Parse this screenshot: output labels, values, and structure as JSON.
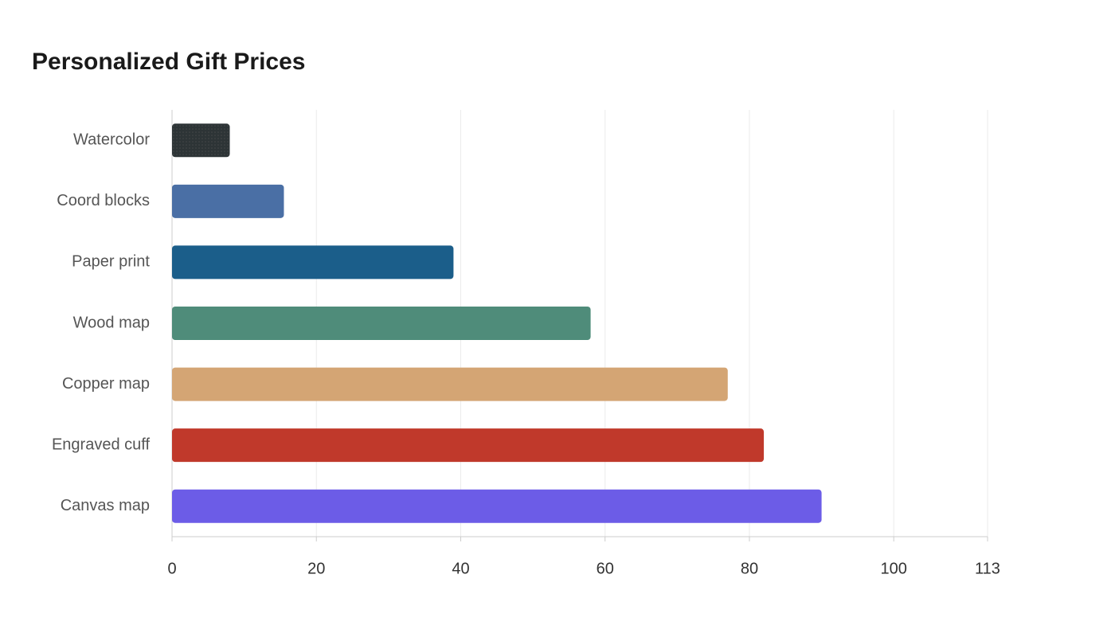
{
  "chart_data": {
    "type": "bar",
    "orientation": "horizontal",
    "title": "Personalized Gift Prices",
    "categories": [
      "Watercolor",
      "Coord blocks",
      "Paper print",
      "Wood map",
      "Copper map",
      "Engraved cuff",
      "Canvas map"
    ],
    "values": [
      8,
      15.5,
      39,
      58,
      77,
      82,
      90
    ],
    "colors": [
      "#2d3436",
      "#4a6fa5",
      "#1b5e8a",
      "#4f8c7a",
      "#d4a574",
      "#c0392b",
      "#6c5ce7"
    ],
    "xlim": [
      0,
      113
    ],
    "xticks": [
      0,
      20,
      40,
      60,
      80,
      100,
      113
    ],
    "grid": true
  }
}
